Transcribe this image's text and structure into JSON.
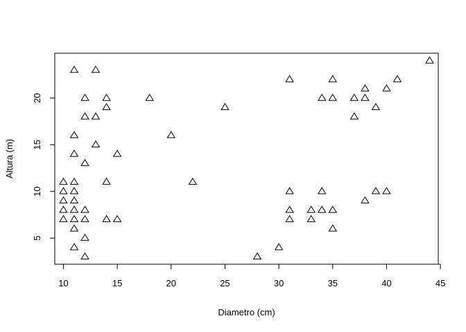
{
  "chart_data": {
    "type": "scatter",
    "title": "",
    "xlabel": "Diametro (cm)",
    "ylabel": "Altura (m)",
    "xlim": [
      9.2,
      44.8
    ],
    "ylim": [
      2.2,
      24.8
    ],
    "xticks": [
      10,
      15,
      20,
      25,
      30,
      35,
      40,
      45
    ],
    "yticks": [
      5,
      10,
      15,
      20
    ],
    "marker": "open-triangle",
    "grid": false,
    "points": [
      {
        "x": 10,
        "y": 11
      },
      {
        "x": 10,
        "y": 10
      },
      {
        "x": 10,
        "y": 9
      },
      {
        "x": 10,
        "y": 8
      },
      {
        "x": 10,
        "y": 7
      },
      {
        "x": 11,
        "y": 23
      },
      {
        "x": 11,
        "y": 16
      },
      {
        "x": 11,
        "y": 14
      },
      {
        "x": 11,
        "y": 11
      },
      {
        "x": 11,
        "y": 10
      },
      {
        "x": 11,
        "y": 9
      },
      {
        "x": 11,
        "y": 8
      },
      {
        "x": 11,
        "y": 7
      },
      {
        "x": 11,
        "y": 6
      },
      {
        "x": 11,
        "y": 4
      },
      {
        "x": 12,
        "y": 20
      },
      {
        "x": 12,
        "y": 18
      },
      {
        "x": 12,
        "y": 13
      },
      {
        "x": 12,
        "y": 8
      },
      {
        "x": 12,
        "y": 7
      },
      {
        "x": 12,
        "y": 5
      },
      {
        "x": 12,
        "y": 3
      },
      {
        "x": 13,
        "y": 23
      },
      {
        "x": 13,
        "y": 18
      },
      {
        "x": 13,
        "y": 15
      },
      {
        "x": 14,
        "y": 20
      },
      {
        "x": 14,
        "y": 19
      },
      {
        "x": 14,
        "y": 11
      },
      {
        "x": 14,
        "y": 7
      },
      {
        "x": 15,
        "y": 14
      },
      {
        "x": 15,
        "y": 7
      },
      {
        "x": 18,
        "y": 20
      },
      {
        "x": 20,
        "y": 16
      },
      {
        "x": 22,
        "y": 11
      },
      {
        "x": 25,
        "y": 19
      },
      {
        "x": 28,
        "y": 3
      },
      {
        "x": 30,
        "y": 4
      },
      {
        "x": 31,
        "y": 22
      },
      {
        "x": 31,
        "y": 10
      },
      {
        "x": 31,
        "y": 8
      },
      {
        "x": 31,
        "y": 7
      },
      {
        "x": 33,
        "y": 8
      },
      {
        "x": 33,
        "y": 7
      },
      {
        "x": 34,
        "y": 20
      },
      {
        "x": 34,
        "y": 10
      },
      {
        "x": 34,
        "y": 8
      },
      {
        "x": 35,
        "y": 22
      },
      {
        "x": 35,
        "y": 20
      },
      {
        "x": 35,
        "y": 8
      },
      {
        "x": 35,
        "y": 6
      },
      {
        "x": 37,
        "y": 20
      },
      {
        "x": 37,
        "y": 18
      },
      {
        "x": 38,
        "y": 21
      },
      {
        "x": 38,
        "y": 20
      },
      {
        "x": 38,
        "y": 9
      },
      {
        "x": 39,
        "y": 19
      },
      {
        "x": 39,
        "y": 10
      },
      {
        "x": 40,
        "y": 21
      },
      {
        "x": 40,
        "y": 10
      },
      {
        "x": 41,
        "y": 22
      },
      {
        "x": 44,
        "y": 24
      }
    ]
  }
}
